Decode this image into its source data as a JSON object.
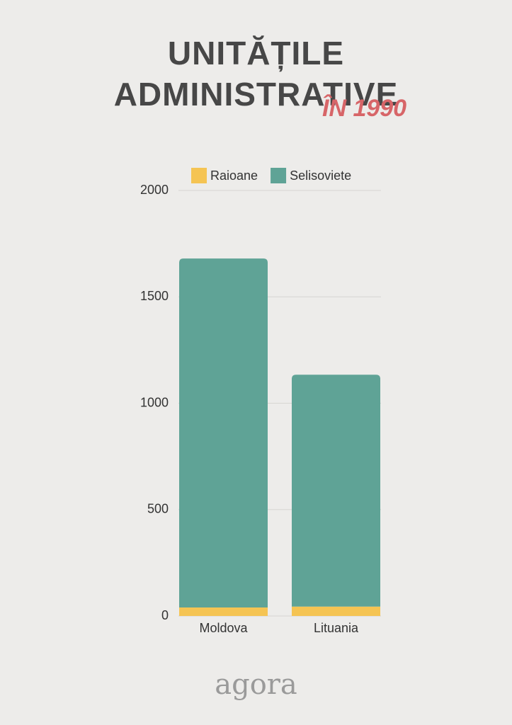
{
  "chart_data": {
    "type": "stacked-bar",
    "title": "UNITĂȚILE ADMINISTRATIVE",
    "subtitle": "ÎN 1990",
    "categories": [
      "Moldova",
      "Lituania"
    ],
    "series": [
      {
        "name": "Raioane",
        "color": "#f5c453",
        "values": [
          40,
          44
        ]
      },
      {
        "name": "Selisoviete",
        "color": "#5fa396",
        "values": [
          1640,
          1090
        ]
      }
    ],
    "ylim": [
      0,
      2000
    ],
    "yticks": [
      0,
      500,
      1000,
      1500,
      2000
    ],
    "grid": true,
    "legend": "top",
    "brand": "agora"
  }
}
